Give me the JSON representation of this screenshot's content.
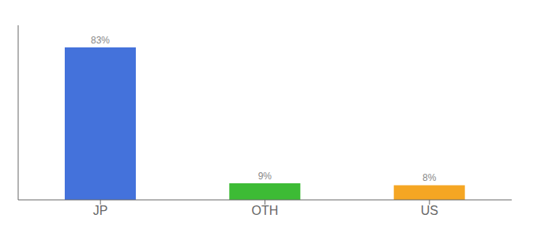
{
  "chart_data": {
    "type": "bar",
    "categories": [
      "JP",
      "OTH",
      "US"
    ],
    "values": [
      83,
      9,
      8
    ],
    "value_labels": [
      "83%",
      "9%",
      "8%"
    ],
    "colors": [
      "#4472db",
      "#3dbb35",
      "#f5a623"
    ],
    "ylim": [
      0,
      95
    ],
    "data_labels": true,
    "tick_labels": "x",
    "grid": false
  }
}
